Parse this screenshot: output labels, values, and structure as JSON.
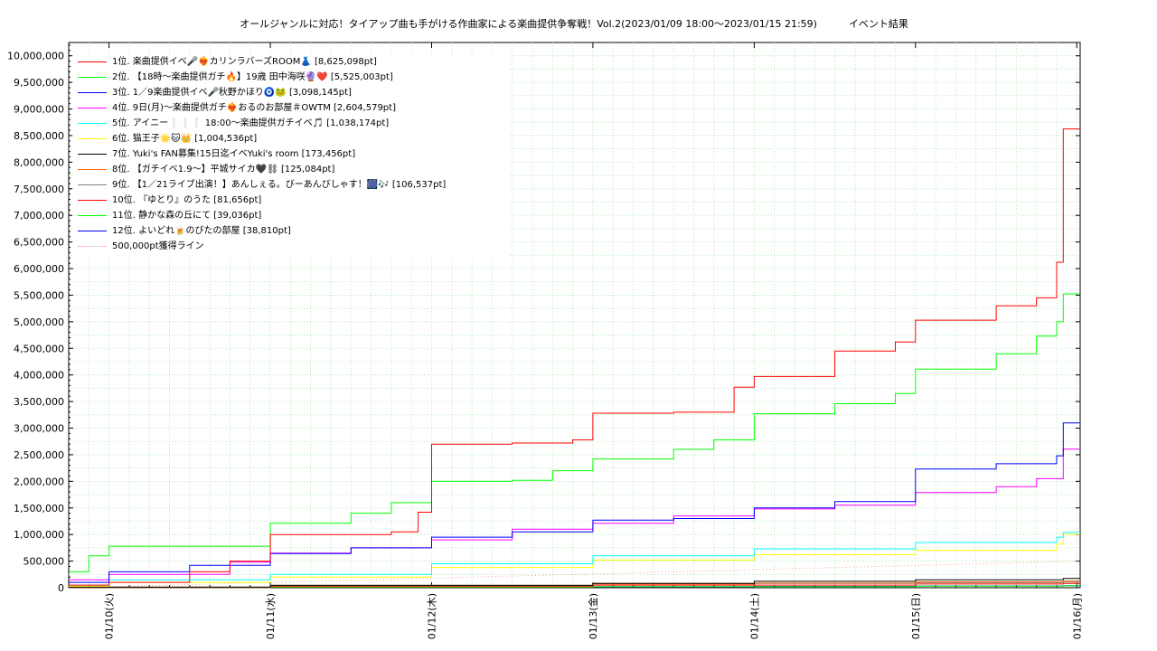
{
  "chart_data": {
    "type": "line",
    "title": "オールジャンルに対応！タイアップ曲も手がける作曲家による楽曲提供争奪戦！Vol.2(2023/01/09 18:00～2023/01/15 21:59)          イベント結果",
    "xlabel": "",
    "ylabel": "",
    "ylim": [
      0,
      10250000
    ],
    "y_ticks": [
      0,
      500000,
      1000000,
      1500000,
      2000000,
      2500000,
      3000000,
      3500000,
      4000000,
      4500000,
      5000000,
      5500000,
      6000000,
      6500000,
      7000000,
      7500000,
      8000000,
      8500000,
      9000000,
      9500000,
      10000000
    ],
    "y_tick_labels": [
      "0",
      "500,000",
      "1,000,000",
      "1,500,000",
      "2,000,000",
      "2,500,000",
      "3,000,000",
      "3,500,000",
      "4,000,000",
      "4,500,000",
      "5,000,000",
      "5,500,000",
      "6,000,000",
      "6,500,000",
      "7,000,000",
      "7,500,000",
      "8,000,000",
      "8,500,000",
      "9,000,000",
      "9,500,000",
      "10,000,000"
    ],
    "xlim": [
      "2023-01-09 18:00",
      "2023-01-16 00:30"
    ],
    "x_ticks": [
      "2023-01-10 00:00",
      "2023-01-11 00:00",
      "2023-01-12 00:00",
      "2023-01-13 00:00",
      "2023-01-14 00:00",
      "2023-01-15 00:00",
      "2023-01-16 00:00"
    ],
    "x_tick_labels": [
      "01/10(火)",
      "01/11(水)",
      "01/12(木)",
      "01/13(金)",
      "01/14(土)",
      "01/15(日)",
      "01/16(月)"
    ],
    "grid": true,
    "legend_position": "top-left",
    "series": [
      {
        "name": "1位. 楽曲提供イベ🎤❤️‍🔥カリンラバーズROOM👗 [8,625,098pt]",
        "color": "#ff0000",
        "x": [
          "2023-01-09 18:00",
          "2023-01-10 00:00",
          "2023-01-10 12:00",
          "2023-01-10 18:00",
          "2023-01-11 00:00",
          "2023-01-11 18:00",
          "2023-01-11 22:00",
          "2023-01-12 00:00",
          "2023-01-12 12:00",
          "2023-01-12 21:00",
          "2023-01-13 00:00",
          "2023-01-13 12:00",
          "2023-01-13 21:00",
          "2023-01-14 00:00",
          "2023-01-14 12:00",
          "2023-01-14 21:00",
          "2023-01-15 00:00",
          "2023-01-15 12:00",
          "2023-01-15 18:00",
          "2023-01-15 21:00",
          "2023-01-15 21:59",
          "2023-01-16 00:30"
        ],
        "y": [
          50000,
          100000,
          300000,
          500000,
          1000000,
          1050000,
          1420000,
          2700000,
          2720000,
          2780000,
          3280000,
          3300000,
          3770000,
          3970000,
          4450000,
          4620000,
          5030000,
          5300000,
          5450000,
          6120000,
          8625098,
          8625098
        ]
      },
      {
        "name": "2位. 【18時〜楽曲提供ガチ🔥】19歳 田中海咲🔮❤️ [5,525,003pt]",
        "color": "#00ff00",
        "x": [
          "2023-01-09 18:00",
          "2023-01-09 21:00",
          "2023-01-10 00:00",
          "2023-01-11 00:00",
          "2023-01-11 12:00",
          "2023-01-11 18:00",
          "2023-01-12 00:00",
          "2023-01-12 12:00",
          "2023-01-12 18:00",
          "2023-01-13 00:00",
          "2023-01-13 12:00",
          "2023-01-13 18:00",
          "2023-01-14 00:00",
          "2023-01-14 12:00",
          "2023-01-14 21:00",
          "2023-01-15 00:00",
          "2023-01-15 12:00",
          "2023-01-15 18:00",
          "2023-01-15 21:00",
          "2023-01-15 21:59",
          "2023-01-16 00:30"
        ],
        "y": [
          300000,
          600000,
          780000,
          1210000,
          1400000,
          1600000,
          2000000,
          2020000,
          2200000,
          2420000,
          2600000,
          2780000,
          3270000,
          3460000,
          3650000,
          4110000,
          4400000,
          4730000,
          5000000,
          5525003,
          5525003
        ]
      },
      {
        "name": "3位. 1／9楽曲提供イベ🎤秋野かほり🧿🐸 [3,098,145pt]",
        "color": "#0000ff",
        "x": [
          "2023-01-09 18:00",
          "2023-01-10 00:00",
          "2023-01-10 12:00",
          "2023-01-11 00:00",
          "2023-01-11 12:00",
          "2023-01-12 00:00",
          "2023-01-12 12:00",
          "2023-01-13 00:00",
          "2023-01-13 12:00",
          "2023-01-14 00:00",
          "2023-01-14 12:00",
          "2023-01-15 00:00",
          "2023-01-15 12:00",
          "2023-01-15 21:00",
          "2023-01-15 21:59",
          "2023-01-16 00:30"
        ],
        "y": [
          100000,
          300000,
          420000,
          640000,
          750000,
          950000,
          1050000,
          1270000,
          1300000,
          1500000,
          1620000,
          2230000,
          2330000,
          2480000,
          3098145,
          3098145
        ]
      },
      {
        "name": "4位. 9日(月)〜楽曲提供ガチ❤️‍🔥おるのお部屋＃OWTM [2,604,579pt]",
        "color": "#ff00ff",
        "x": [
          "2023-01-09 18:00",
          "2023-01-10 00:00",
          "2023-01-10 18:00",
          "2023-01-11 00:00",
          "2023-01-11 12:00",
          "2023-01-12 00:00",
          "2023-01-12 12:00",
          "2023-01-13 00:00",
          "2023-01-13 12:00",
          "2023-01-14 00:00",
          "2023-01-14 12:00",
          "2023-01-15 00:00",
          "2023-01-15 12:00",
          "2023-01-15 18:00",
          "2023-01-15 21:59",
          "2023-01-16 00:30"
        ],
        "y": [
          150000,
          250000,
          480000,
          650000,
          750000,
          900000,
          1100000,
          1210000,
          1350000,
          1480000,
          1550000,
          1790000,
          1900000,
          2050000,
          2604579,
          2604579
        ]
      },
      {
        "name": "5位. アイニー❕❕❕ 18:00〜楽曲提供ガチイベ🎵 [1,038,174pt]",
        "color": "#00ffff",
        "x": [
          "2023-01-09 18:00",
          "2023-01-10 00:00",
          "2023-01-11 00:00",
          "2023-01-12 00:00",
          "2023-01-13 00:00",
          "2023-01-14 00:00",
          "2023-01-15 00:00",
          "2023-01-15 21:00",
          "2023-01-15 21:59",
          "2023-01-16 00:30"
        ],
        "y": [
          50000,
          150000,
          250000,
          450000,
          600000,
          730000,
          850000,
          950000,
          1038174,
          1038174
        ]
      },
      {
        "name": "6位. 猫王子🌟🐱👑 [1,004,536pt]",
        "color": "#ffff00",
        "x": [
          "2023-01-09 18:00",
          "2023-01-10 00:00",
          "2023-01-11 00:00",
          "2023-01-12 00:00",
          "2023-01-13 00:00",
          "2023-01-14 00:00",
          "2023-01-15 00:00",
          "2023-01-15 21:00",
          "2023-01-15 21:59",
          "2023-01-16 00:30"
        ],
        "y": [
          30000,
          100000,
          200000,
          380000,
          520000,
          620000,
          700000,
          820000,
          1004536,
          1004536
        ]
      },
      {
        "name": "7位. Yuki's FAN募集!15日迄イベYuki's room [173,456pt]",
        "color": "#000000",
        "x": [
          "2023-01-09 18:00",
          "2023-01-11 00:00",
          "2023-01-13 00:00",
          "2023-01-14 00:00",
          "2023-01-15 00:00",
          "2023-01-15 21:59",
          "2023-01-16 00:30"
        ],
        "y": [
          10000,
          40000,
          80000,
          120000,
          150000,
          173456,
          173456
        ]
      },
      {
        "name": "8位. 【ガチイベ1.9〜】平城サイカ🖤⛓ [125,084pt]",
        "color": "#ff6600",
        "x": [
          "2023-01-09 18:00",
          "2023-01-11 00:00",
          "2023-01-13 00:00",
          "2023-01-14 00:00",
          "2023-01-15 00:00",
          "2023-01-15 21:59",
          "2023-01-16 00:30"
        ],
        "y": [
          10000,
          30000,
          70000,
          90000,
          110000,
          125084,
          125084
        ]
      },
      {
        "name": "9位. 【1／21ライブ出演！】あんしぇる。びーあんびしゃす！🎆🎶 [106,537pt]",
        "color": "#808080",
        "x": [
          "2023-01-09 18:00",
          "2023-01-11 00:00",
          "2023-01-13 00:00",
          "2023-01-15 00:00",
          "2023-01-15 21:59",
          "2023-01-16 00:30"
        ],
        "y": [
          10000,
          50000,
          80000,
          95000,
          106537,
          106537
        ]
      },
      {
        "name": "10位. 『ゆとり』のうた [81,656pt]",
        "color": "#ff0000",
        "x": [
          "2023-01-09 18:00",
          "2023-01-11 00:00",
          "2023-01-13 00:00",
          "2023-01-15 00:00",
          "2023-01-15 21:59",
          "2023-01-16 00:30"
        ],
        "y": [
          5000,
          20000,
          50000,
          70000,
          81656,
          81656
        ]
      },
      {
        "name": "11位. 静かな森の丘にて [39,036pt]",
        "color": "#00ff00",
        "x": [
          "2023-01-09 18:00",
          "2023-01-11 00:00",
          "2023-01-13 00:00",
          "2023-01-15 00:00",
          "2023-01-15 21:59",
          "2023-01-16 00:30"
        ],
        "y": [
          2000,
          10000,
          20000,
          30000,
          39036,
          39036
        ]
      },
      {
        "name": "12位. よいどれ🍺のびたの部屋 [38,810pt]",
        "color": "#0000ff",
        "x": [
          "2023-01-09 18:00",
          "2023-01-11 00:00",
          "2023-01-13 00:00",
          "2023-01-14 00:00",
          "2023-01-15 00:00",
          "2023-01-15 21:59",
          "2023-01-16 00:30"
        ],
        "y": [
          2000,
          10000,
          18000,
          25000,
          33000,
          38810,
          38810
        ]
      },
      {
        "name": "500,000pt獲得ライン",
        "color": "#ff9999",
        "dotted": true,
        "x": [
          "2023-01-09 18:00",
          "2023-01-16 00:30"
        ],
        "y": [
          0,
          500000
        ]
      }
    ]
  }
}
